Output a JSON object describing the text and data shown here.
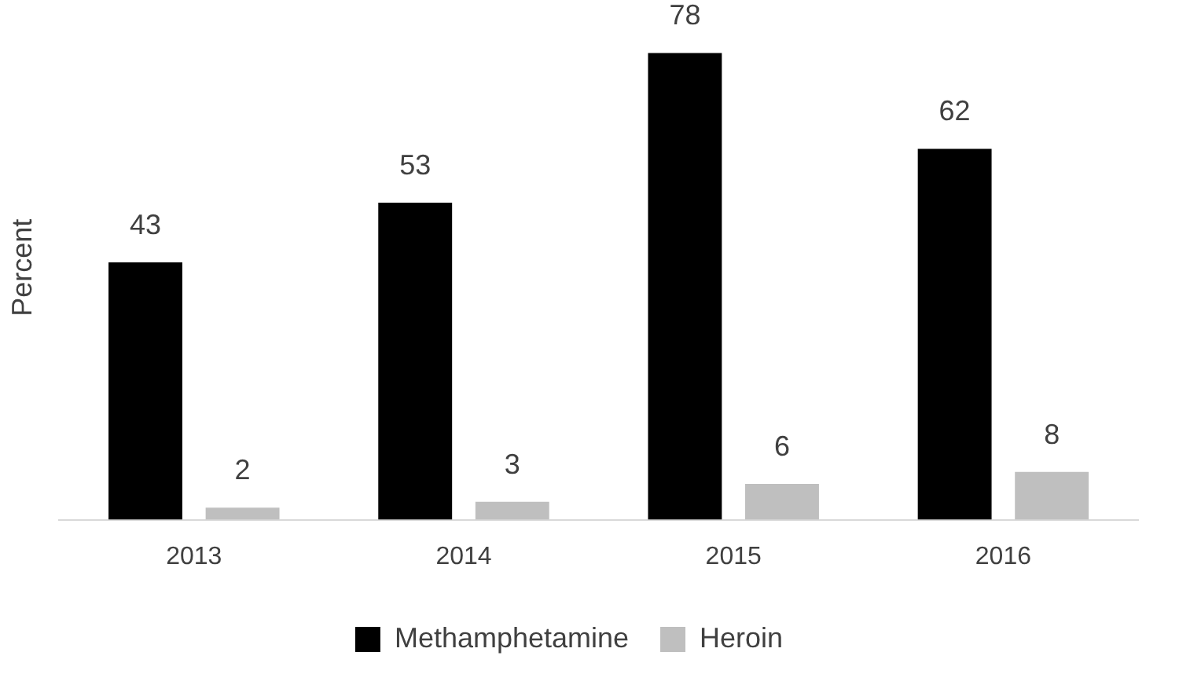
{
  "chart_data": {
    "type": "bar",
    "ylabel": "Percent",
    "categories": [
      "2013",
      "2014",
      "2015",
      "2016"
    ],
    "series": [
      {
        "name": "Methamphetamine",
        "color": "#000000",
        "values": [
          43,
          53,
          78,
          62
        ]
      },
      {
        "name": "Heroin",
        "color": "#bfbfbf",
        "values": [
          2,
          3,
          6,
          8
        ]
      }
    ],
    "data_labels": true,
    "legend": "bottom",
    "grid": false
  }
}
